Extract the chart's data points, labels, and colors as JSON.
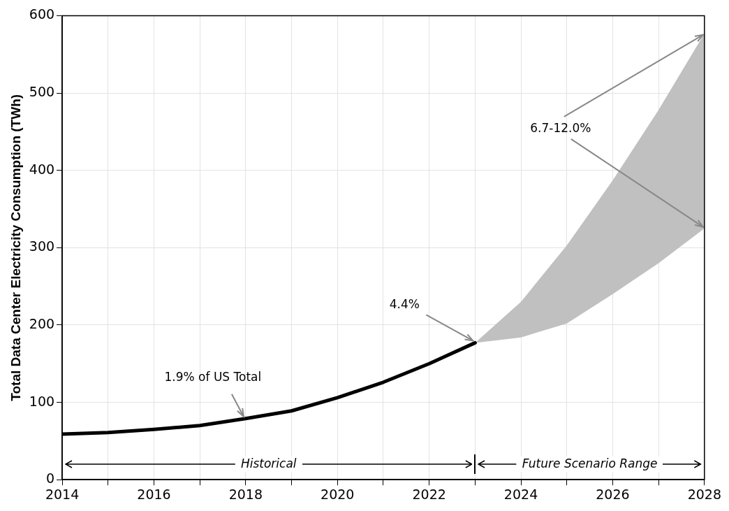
{
  "chart_data": {
    "type": "line",
    "ylabel": "Total Data Center Electricity Consumption (TWh)",
    "xlim": [
      2014,
      2028
    ],
    "ylim": [
      0,
      600
    ],
    "xticks": [
      2014,
      {
        "value": 2015,
        "label": null
      },
      2016,
      {
        "value": 2017,
        "label": null
      },
      2018,
      {
        "value": 2019,
        "label": null
      },
      2020,
      {
        "value": 2021,
        "label": null
      },
      2022,
      {
        "value": 2023,
        "label": null
      },
      2024,
      {
        "value": 2025,
        "label": null
      },
      2026,
      {
        "value": 2027,
        "label": null
      },
      2028
    ],
    "yticks": [
      0,
      100,
      200,
      300,
      400,
      500,
      600
    ],
    "grid": true,
    "marker": "none",
    "line_style": "solid",
    "series": [
      {
        "type": "line",
        "color": "#000000",
        "x": [
          2014,
          2015,
          2016,
          2017,
          2018,
          2019,
          2020,
          2021,
          2022,
          2023
        ],
        "values": [
          59,
          61,
          65,
          70,
          79,
          89,
          106,
          126,
          150,
          177
        ]
      },
      {
        "type": "area",
        "color": "#c0c0c0",
        "x": [
          2023,
          2024,
          2025,
          2026,
          2027,
          2028
        ],
        "values": [
          null,
          null,
          null,
          null,
          null,
          null
        ],
        "lower": [
          177,
          184,
          202,
          240,
          280,
          325
        ],
        "upper": [
          177,
          230,
          303,
          387,
          478,
          577
        ]
      }
    ],
    "annotations": [
      {
        "text": "1.9% of US Total",
        "x": 2018,
        "y": 79
      },
      {
        "text": "4.4%",
        "x": 2023,
        "y": 177
      },
      {
        "text": "6.7-12.0%",
        "x": 2028,
        "y": 577
      },
      "Historical",
      "Future Scenario Range"
    ]
  }
}
